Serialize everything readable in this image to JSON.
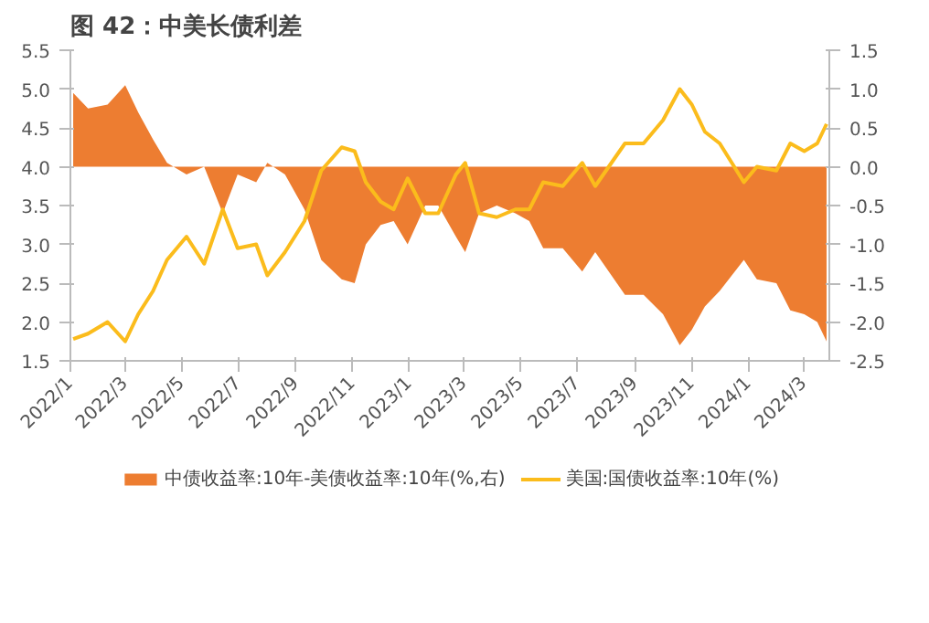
{
  "chart_data": {
    "type": "line",
    "title": "图 42：中美长债利差",
    "x": [
      "2022-01-04",
      "2022-01-20",
      "2022-02-10",
      "2022-03-01",
      "2022-03-15",
      "2022-03-31",
      "2022-04-15",
      "2022-05-06",
      "2022-05-25",
      "2022-06-14",
      "2022-06-30",
      "2022-07-20",
      "2022-08-01",
      "2022-08-20",
      "2022-09-10",
      "2022-09-28",
      "2022-10-20",
      "2022-11-03",
      "2022-11-15",
      "2022-12-01",
      "2022-12-15",
      "2022-12-30",
      "2023-01-18",
      "2023-02-01",
      "2023-02-20",
      "2023-03-02",
      "2023-03-17",
      "2023-04-05",
      "2023-04-25",
      "2023-05-10",
      "2023-05-25",
      "2023-06-15",
      "2023-07-06",
      "2023-07-20",
      "2023-08-21",
      "2023-09-10",
      "2023-10-01",
      "2023-10-19",
      "2023-11-01",
      "2023-11-15",
      "2023-12-01",
      "2023-12-27",
      "2024-01-10",
      "2024-01-31",
      "2024-02-15",
      "2024-03-01",
      "2024-03-15",
      "2024-03-25"
    ],
    "series": [
      {
        "name": "中债收益率:10年-美债收益率:10年(%,右)",
        "type": "area",
        "axis": "y2",
        "color": "#ed7d31",
        "values": [
          0.95,
          0.75,
          0.8,
          1.05,
          0.7,
          0.35,
          0.05,
          -0.1,
          0.0,
          -0.6,
          -0.1,
          -0.2,
          0.05,
          -0.1,
          -0.55,
          -1.2,
          -1.45,
          -1.5,
          -1.0,
          -0.75,
          -0.7,
          -1.0,
          -0.5,
          -0.5,
          -0.9,
          -1.1,
          -0.6,
          -0.5,
          -0.6,
          -0.7,
          -1.05,
          -1.05,
          -1.35,
          -1.1,
          -1.65,
          -1.65,
          -1.9,
          -2.3,
          -2.1,
          -1.8,
          -1.6,
          -1.2,
          -1.45,
          -1.5,
          -1.85,
          -1.9,
          -2.0,
          -2.25
        ]
      },
      {
        "name": "美国:国债收益率:10年(%)",
        "color": "#fbbc1c",
        "values": [
          1.78,
          1.85,
          2.0,
          1.75,
          2.1,
          2.4,
          2.8,
          3.1,
          2.75,
          3.45,
          2.95,
          3.0,
          2.6,
          2.9,
          3.3,
          3.95,
          4.25,
          4.2,
          3.8,
          3.55,
          3.45,
          3.85,
          3.4,
          3.4,
          3.9,
          4.05,
          3.4,
          3.35,
          3.45,
          3.45,
          3.8,
          3.75,
          4.05,
          3.75,
          4.3,
          4.3,
          4.6,
          5.0,
          4.8,
          4.45,
          4.3,
          3.8,
          4.0,
          3.95,
          4.3,
          4.2,
          4.3,
          4.55
        ]
      }
    ],
    "xlim": [
      "2022-01-01",
      "2024-03-28"
    ],
    "xticks": [
      {
        "value": "2022-01-01",
        "label": "2022/1"
      },
      {
        "value": "2022-03-01",
        "label": "2022/3"
      },
      {
        "value": "2022-05-01",
        "label": "2022/5"
      },
      {
        "value": "2022-07-01",
        "label": "2022/7"
      },
      {
        "value": "2022-09-01",
        "label": "2022/9"
      },
      {
        "value": "2022-11-01",
        "label": "2022/11"
      },
      {
        "value": "2023-01-01",
        "label": "2023/1"
      },
      {
        "value": "2023-03-01",
        "label": "2023/3"
      },
      {
        "value": "2023-05-01",
        "label": "2023/5"
      },
      {
        "value": "2023-07-01",
        "label": "2023/7"
      },
      {
        "value": "2023-09-01",
        "label": "2023/9"
      },
      {
        "value": "2023-11-01",
        "label": "2023/11"
      },
      {
        "value": "2024-01-01",
        "label": "2024/1"
      },
      {
        "value": "2024-03-01",
        "label": "2024/3"
      }
    ],
    "ylim": [
      1.5,
      5.5
    ],
    "yticks": [
      {
        "value": 1.5,
        "label": "1.5"
      },
      {
        "value": 2.0,
        "label": "2.0"
      },
      {
        "value": 2.5,
        "label": "2.5"
      },
      {
        "value": 3.0,
        "label": "3.0"
      },
      {
        "value": 3.5,
        "label": "3.5"
      },
      {
        "value": 4.0,
        "label": "4.0"
      },
      {
        "value": 4.5,
        "label": "4.5"
      },
      {
        "value": 5.0,
        "label": "5.0"
      },
      {
        "value": 5.5,
        "label": "5.5"
      }
    ],
    "y2lim": [
      -2.5,
      1.5
    ],
    "y2ticks": [
      {
        "value": -2.5,
        "label": "-2.5"
      },
      {
        "value": -2.0,
        "label": "-2.0"
      },
      {
        "value": -1.5,
        "label": "-1.5"
      },
      {
        "value": -1.0,
        "label": "-1.0"
      },
      {
        "value": -0.5,
        "label": "-0.5"
      },
      {
        "value": 0.0,
        "label": "0.0"
      },
      {
        "value": 0.5,
        "label": "0.5"
      },
      {
        "value": 1.0,
        "label": "1.0"
      },
      {
        "value": 1.5,
        "label": "1.5"
      }
    ],
    "legend": "bottom",
    "grid": false
  }
}
